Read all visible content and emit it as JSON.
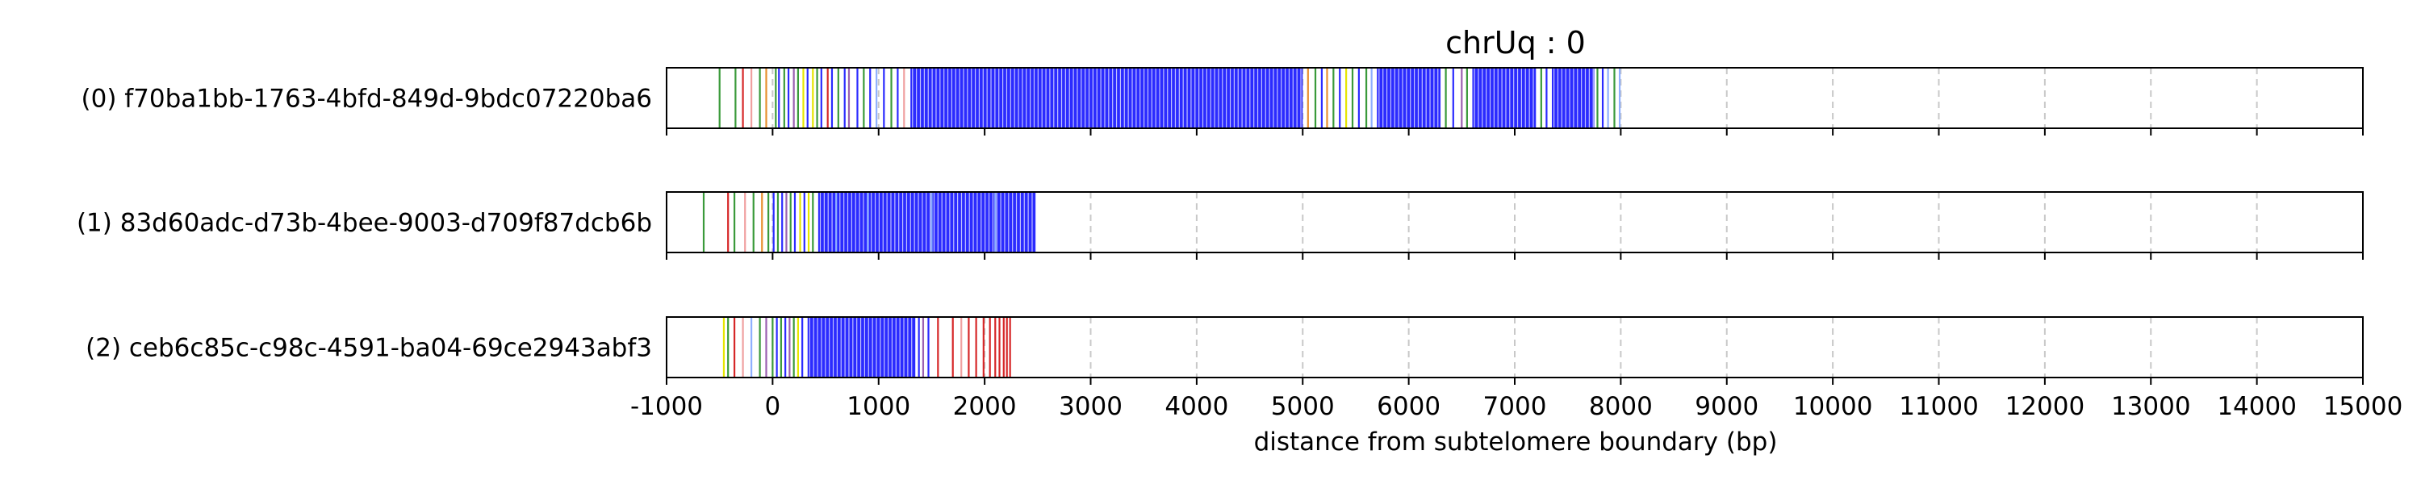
{
  "chart_data": {
    "type": "bar",
    "title": "chrUq : 0",
    "xlabel": "distance from subtelomere boundary (bp)",
    "xlim": [
      -1000,
      15000
    ],
    "xticks": [
      -1000,
      0,
      1000,
      2000,
      3000,
      4000,
      5000,
      6000,
      7000,
      8000,
      9000,
      10000,
      11000,
      12000,
      13000,
      14000,
      15000
    ],
    "grid": "vertical dashed",
    "colors": {
      "blue": "#2b2bff",
      "light_blue": "#8fb0ff",
      "green": "#3a9a3a",
      "yellow": "#e6e600",
      "red": "#d62728",
      "pink": "#f0a0a0",
      "purple": "#9a60b0",
      "orange": "#e89030"
    },
    "series": [
      {
        "label": "(0) f70ba1bb-1763-4bfd-849d-9bdc07220ba6",
        "extent": [
          -550,
          8000
        ],
        "blue_blocks": [
          [
            1300,
            5000
          ],
          [
            5700,
            6300
          ],
          [
            6600,
            7200
          ],
          [
            7350,
            7750
          ]
        ],
        "lines": [
          {
            "x": -500,
            "c": "green"
          },
          {
            "x": -350,
            "c": "green"
          },
          {
            "x": -280,
            "c": "red"
          },
          {
            "x": -200,
            "c": "pink"
          },
          {
            "x": -120,
            "c": "green"
          },
          {
            "x": -60,
            "c": "orange"
          },
          {
            "x": 30,
            "c": "green"
          },
          {
            "x": 60,
            "c": "blue"
          },
          {
            "x": 110,
            "c": "green"
          },
          {
            "x": 150,
            "c": "blue"
          },
          {
            "x": 200,
            "c": "purple"
          },
          {
            "x": 240,
            "c": "green"
          },
          {
            "x": 290,
            "c": "yellow"
          },
          {
            "x": 330,
            "c": "blue"
          },
          {
            "x": 380,
            "c": "yellow"
          },
          {
            "x": 420,
            "c": "green"
          },
          {
            "x": 460,
            "c": "blue"
          },
          {
            "x": 520,
            "c": "red"
          },
          {
            "x": 560,
            "c": "blue"
          },
          {
            "x": 620,
            "c": "green"
          },
          {
            "x": 680,
            "c": "blue"
          },
          {
            "x": 720,
            "c": "purple"
          },
          {
            "x": 800,
            "c": "blue"
          },
          {
            "x": 860,
            "c": "green"
          },
          {
            "x": 920,
            "c": "blue"
          },
          {
            "x": 980,
            "c": "light_blue"
          },
          {
            "x": 1050,
            "c": "blue"
          },
          {
            "x": 1120,
            "c": "green"
          },
          {
            "x": 1180,
            "c": "blue"
          },
          {
            "x": 1240,
            "c": "pink"
          },
          {
            "x": 5050,
            "c": "orange"
          },
          {
            "x": 5120,
            "c": "green"
          },
          {
            "x": 5180,
            "c": "blue"
          },
          {
            "x": 5230,
            "c": "orange"
          },
          {
            "x": 5290,
            "c": "green"
          },
          {
            "x": 5350,
            "c": "blue"
          },
          {
            "x": 5410,
            "c": "yellow"
          },
          {
            "x": 5470,
            "c": "green"
          },
          {
            "x": 5530,
            "c": "blue"
          },
          {
            "x": 5600,
            "c": "green"
          },
          {
            "x": 5650,
            "c": "light_blue"
          },
          {
            "x": 6350,
            "c": "green"
          },
          {
            "x": 6420,
            "c": "blue"
          },
          {
            "x": 6500,
            "c": "purple"
          },
          {
            "x": 6550,
            "c": "green"
          },
          {
            "x": 7250,
            "c": "green"
          },
          {
            "x": 7300,
            "c": "blue"
          },
          {
            "x": 7780,
            "c": "green"
          },
          {
            "x": 7830,
            "c": "blue"
          },
          {
            "x": 7880,
            "c": "light_blue"
          },
          {
            "x": 7940,
            "c": "green"
          },
          {
            "x": 7990,
            "c": "light_blue"
          }
        ]
      },
      {
        "label": "(1) 83d60adc-d73b-4bee-9003-d709f87dcb6b",
        "extent": [
          -650,
          2500
        ],
        "blue_blocks": [
          [
            430,
            2480
          ]
        ],
        "lines": [
          {
            "x": -650,
            "c": "green"
          },
          {
            "x": -420,
            "c": "red"
          },
          {
            "x": -360,
            "c": "green"
          },
          {
            "x": -260,
            "c": "pink"
          },
          {
            "x": -180,
            "c": "green"
          },
          {
            "x": -100,
            "c": "orange"
          },
          {
            "x": -40,
            "c": "green"
          },
          {
            "x": 10,
            "c": "blue"
          },
          {
            "x": 50,
            "c": "green"
          },
          {
            "x": 90,
            "c": "blue"
          },
          {
            "x": 130,
            "c": "purple"
          },
          {
            "x": 170,
            "c": "green"
          },
          {
            "x": 210,
            "c": "blue"
          },
          {
            "x": 260,
            "c": "yellow"
          },
          {
            "x": 300,
            "c": "blue"
          },
          {
            "x": 340,
            "c": "yellow"
          },
          {
            "x": 380,
            "c": "green"
          },
          {
            "x": 600,
            "c": "light_blue"
          },
          {
            "x": 900,
            "c": "light_blue"
          },
          {
            "x": 1500,
            "c": "light_blue"
          },
          {
            "x": 2100,
            "c": "light_blue"
          }
        ]
      },
      {
        "label": "(2) ceb6c85c-c98c-4591-ba04-69ce2943abf3",
        "extent": [
          -480,
          2250
        ],
        "blue_blocks": [
          [
            330,
            1350
          ]
        ],
        "lines": [
          {
            "x": -460,
            "c": "yellow"
          },
          {
            "x": -420,
            "c": "green"
          },
          {
            "x": -360,
            "c": "red"
          },
          {
            "x": -280,
            "c": "pink"
          },
          {
            "x": -200,
            "c": "light_blue"
          },
          {
            "x": -120,
            "c": "green"
          },
          {
            "x": -60,
            "c": "purple"
          },
          {
            "x": 0,
            "c": "green"
          },
          {
            "x": 40,
            "c": "blue"
          },
          {
            "x": 80,
            "c": "green"
          },
          {
            "x": 120,
            "c": "blue"
          },
          {
            "x": 160,
            "c": "purple"
          },
          {
            "x": 200,
            "c": "green"
          },
          {
            "x": 240,
            "c": "yellow"
          },
          {
            "x": 280,
            "c": "blue"
          },
          {
            "x": 1380,
            "c": "blue"
          },
          {
            "x": 1420,
            "c": "purple"
          },
          {
            "x": 1470,
            "c": "blue"
          },
          {
            "x": 1560,
            "c": "red"
          },
          {
            "x": 1700,
            "c": "red"
          },
          {
            "x": 1780,
            "c": "pink"
          },
          {
            "x": 1850,
            "c": "red"
          },
          {
            "x": 1920,
            "c": "red"
          },
          {
            "x": 1990,
            "c": "red"
          },
          {
            "x": 2050,
            "c": "red"
          },
          {
            "x": 2100,
            "c": "red"
          },
          {
            "x": 2140,
            "c": "red"
          },
          {
            "x": 2180,
            "c": "red"
          },
          {
            "x": 2210,
            "c": "red"
          },
          {
            "x": 2240,
            "c": "red"
          }
        ]
      }
    ]
  }
}
